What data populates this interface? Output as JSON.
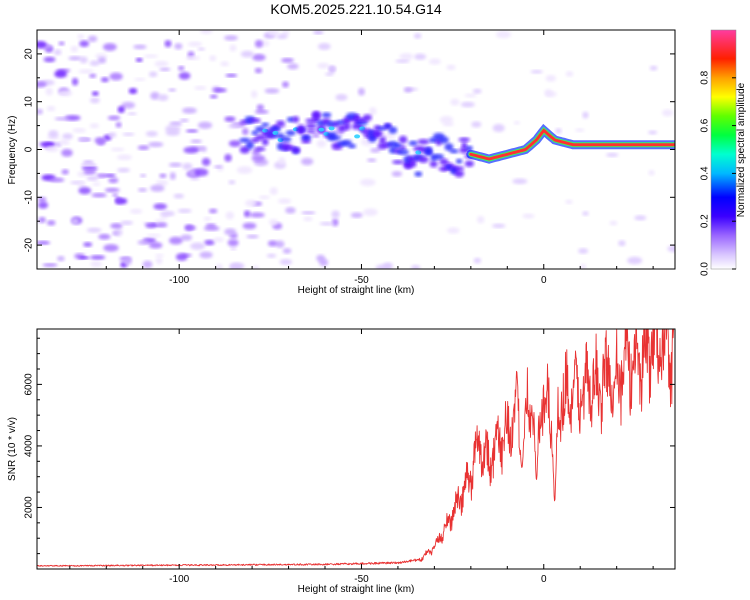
{
  "title": "KOM5.2025.221.10.54.G14",
  "colors": {
    "snr_line": "#e83232",
    "axis": "#000000",
    "spec_base": "#a070ff",
    "ridge": "#ff3030"
  },
  "chart_data": [
    {
      "type": "heatmap",
      "name": "spectrogram",
      "xlabel": "Height of straight line (km)",
      "ylabel": "Frequency (Hz)",
      "xlim": [
        -139,
        36
      ],
      "ylim": [
        -25,
        25
      ],
      "x_ticks": [
        -100,
        -50,
        0
      ],
      "x_tick_labels": [
        "-100",
        "-50",
        "0"
      ],
      "y_ticks": [
        -20,
        -10,
        0,
        10,
        20
      ],
      "y_tick_labels": [
        "-20",
        "-10",
        "0",
        "10",
        "20"
      ],
      "ridge": {
        "x": [
          -80,
          -70,
          -62,
          -55,
          -48,
          -42,
          -35,
          -30,
          -25,
          -20,
          -15,
          -10,
          -5,
          -2,
          0,
          3,
          8,
          20,
          36
        ],
        "y": [
          3,
          3,
          4,
          4,
          4,
          2,
          -2,
          0,
          -2,
          -1,
          -2,
          -1,
          0,
          2,
          4,
          2,
          1,
          1,
          1
        ]
      },
      "colorbar": {
        "label": "Normalized spectral amplitude",
        "range": [
          0.0,
          1.0
        ],
        "ticks": [
          0.0,
          0.2,
          0.4,
          0.6,
          0.8
        ],
        "tick_labels": [
          "0.0",
          "0.2",
          "0.4",
          "0.6",
          "0.8"
        ],
        "colormap": "white-purple-blue-cyan-green-yellow-orange-red-magenta"
      }
    },
    {
      "type": "line",
      "name": "snr",
      "xlabel": "Height of straight line (km)",
      "ylabel": "SNR (10 * v/v)",
      "xlim": [
        -139,
        36
      ],
      "ylim": [
        0,
        7800
      ],
      "x_ticks": [
        -100,
        -50,
        0
      ],
      "x_tick_labels": [
        "-100",
        "-50",
        "0"
      ],
      "y_ticks": [
        2000,
        4000,
        6000
      ],
      "y_tick_labels": [
        "2000",
        "4000",
        "6000"
      ],
      "envelope": {
        "x": [
          -139,
          -60,
          -40,
          -34,
          -30,
          -25,
          -20,
          -18,
          -15,
          -10,
          -5,
          0,
          5,
          10,
          15,
          20,
          25,
          30,
          36
        ],
        "y": [
          100,
          150,
          200,
          300,
          700,
          1800,
          3000,
          4200,
          3500,
          4600,
          5300,
          5200,
          5600,
          5700,
          6000,
          6400,
          6800,
          7200,
          7400
        ]
      },
      "noise_fraction": 0.18,
      "dips": [
        {
          "x": 3,
          "y": 2200
        },
        {
          "x": -2,
          "y": 2900
        },
        {
          "x": -6,
          "y": 3300
        }
      ]
    }
  ]
}
